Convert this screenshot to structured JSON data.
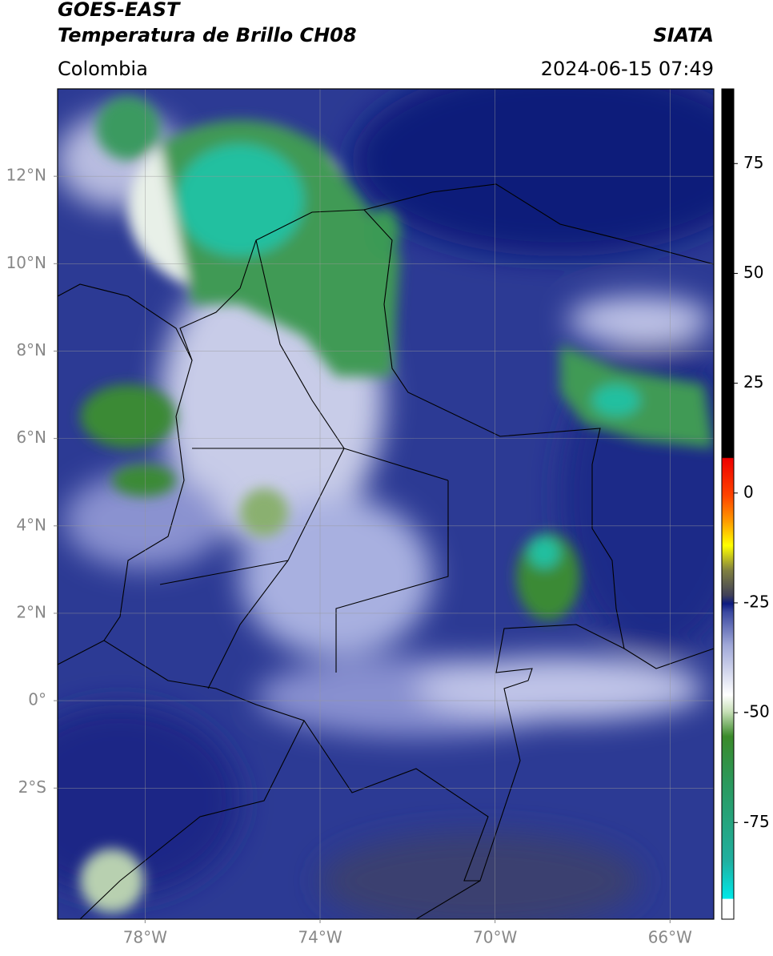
{
  "header": {
    "title": "GOES-EAST",
    "subtitle": "Temperatura de Brillo CH08",
    "region": "Colombia",
    "source": "SIATA",
    "timestamp": "2024-06-15 07:49"
  },
  "map": {
    "xlim": [
      -80,
      -65
    ],
    "ylim": [
      -5,
      14
    ],
    "xticks": [
      {
        "value": -78,
        "label": "78°W"
      },
      {
        "value": -74,
        "label": "74°W"
      },
      {
        "value": -70,
        "label": "70°W"
      },
      {
        "value": -66,
        "label": "66°W"
      }
    ],
    "yticks": [
      {
        "value": 12,
        "label": "12°N"
      },
      {
        "value": 10,
        "label": "10°N"
      },
      {
        "value": 8,
        "label": "8°N"
      },
      {
        "value": 6,
        "label": "6°N"
      },
      {
        "value": 4,
        "label": "4°N"
      },
      {
        "value": 2,
        "label": "2°N"
      },
      {
        "value": 0,
        "label": "0°"
      },
      {
        "value": -2,
        "label": "2°S"
      }
    ],
    "grid": true
  },
  "colorbar": {
    "lim": [
      -97,
      92
    ],
    "ticks": [
      75,
      50,
      25,
      0,
      -25,
      -50,
      -75
    ]
  }
}
